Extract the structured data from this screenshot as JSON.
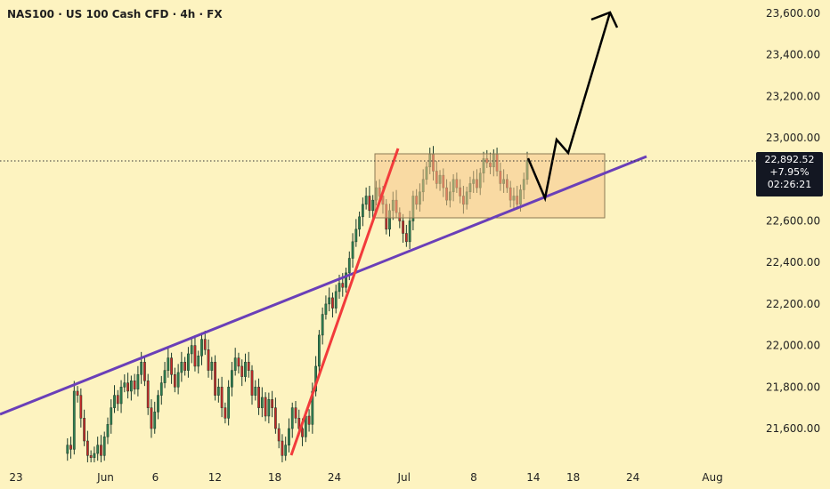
{
  "header": {
    "title": "NAS100 · US 100 Cash CFD · 4h · FX"
  },
  "price_badge": {
    "price": "22,892.52",
    "change": "+7.95%",
    "timer": "02:26:21"
  },
  "colors": {
    "background": "#fdf3c0",
    "up_candle": "#2e7d4f",
    "down_candle": "#c62828",
    "red_trendline": "#f23b3b",
    "purple_trendline": "#6a3fb8",
    "range_box": "#f5c48a",
    "arrow": "#000000"
  },
  "chart_data": {
    "type": "candlestick",
    "y_axis": {
      "range": [
        21450,
        23680
      ],
      "ticks": [
        "21,600.00",
        "21,800.00",
        "22,000.00",
        "22,200.00",
        "22,400.00",
        "22,600.00",
        "22,800.00",
        "23,000.00",
        "23,200.00",
        "23,400.00",
        "23,600.00"
      ],
      "tick_values": [
        21600,
        21800,
        22000,
        22200,
        22400,
        22600,
        22800,
        23000,
        23200,
        23400,
        23600
      ]
    },
    "x_axis": {
      "ticks": [
        "23",
        "Jun",
        "6",
        "12",
        "18",
        "24",
        "Jul",
        "8",
        "14",
        "18",
        "24",
        "Aug"
      ],
      "tick_dates": [
        "2025-05-23",
        "2025-06-01",
        "2025-06-06",
        "2025-06-12",
        "2025-06-18",
        "2025-06-24",
        "2025-07-01",
        "2025-07-08",
        "2025-07-14",
        "2025-07-18",
        "2025-07-24",
        "2025-08-01"
      ],
      "range": [
        "2025-05-22",
        "2025-08-02"
      ]
    },
    "last_price": 22892.52,
    "series": {
      "close": [
        21480,
        21520,
        21500,
        21780,
        21760,
        21650,
        21540,
        21470,
        21460,
        21480,
        21520,
        21470,
        21560,
        21620,
        21700,
        21760,
        21720,
        21800,
        21820,
        21780,
        21830,
        21790,
        21860,
        21920,
        21830,
        21700,
        21600,
        21680,
        21760,
        21820,
        21880,
        21940,
        21860,
        21800,
        21870,
        21920,
        21880,
        21960,
        22000,
        21900,
        21950,
        22030,
        21980,
        21880,
        21920,
        21760,
        21800,
        21700,
        21650,
        21800,
        21880,
        21940,
        21900,
        21850,
        21920,
        21880,
        21760,
        21800,
        21700,
        21750,
        21660,
        21740,
        21700,
        21600,
        21540,
        21470,
        21520,
        21600,
        21700,
        21650,
        21600,
        21560,
        21660,
        21620,
        21780,
        21900,
        22050,
        22150,
        22200,
        22230,
        22180,
        22260,
        22300,
        22280,
        22350,
        22420,
        22500,
        22560,
        22620,
        22680,
        22720,
        22650,
        22700,
        22760,
        22720,
        22680,
        22560,
        22650,
        22700,
        22640,
        22600,
        22540,
        22500,
        22600,
        22720,
        22680,
        22740,
        22800,
        22860,
        22920,
        22840,
        22780,
        22820,
        22760,
        22700,
        22740,
        22800,
        22760,
        22720,
        22680,
        22740,
        22780,
        22800,
        22760,
        22830,
        22900,
        22880,
        22860,
        22920,
        22840,
        22780,
        22800,
        22760,
        22700,
        22720,
        22680,
        22750,
        22800,
        22892
      ]
    }
  }
}
